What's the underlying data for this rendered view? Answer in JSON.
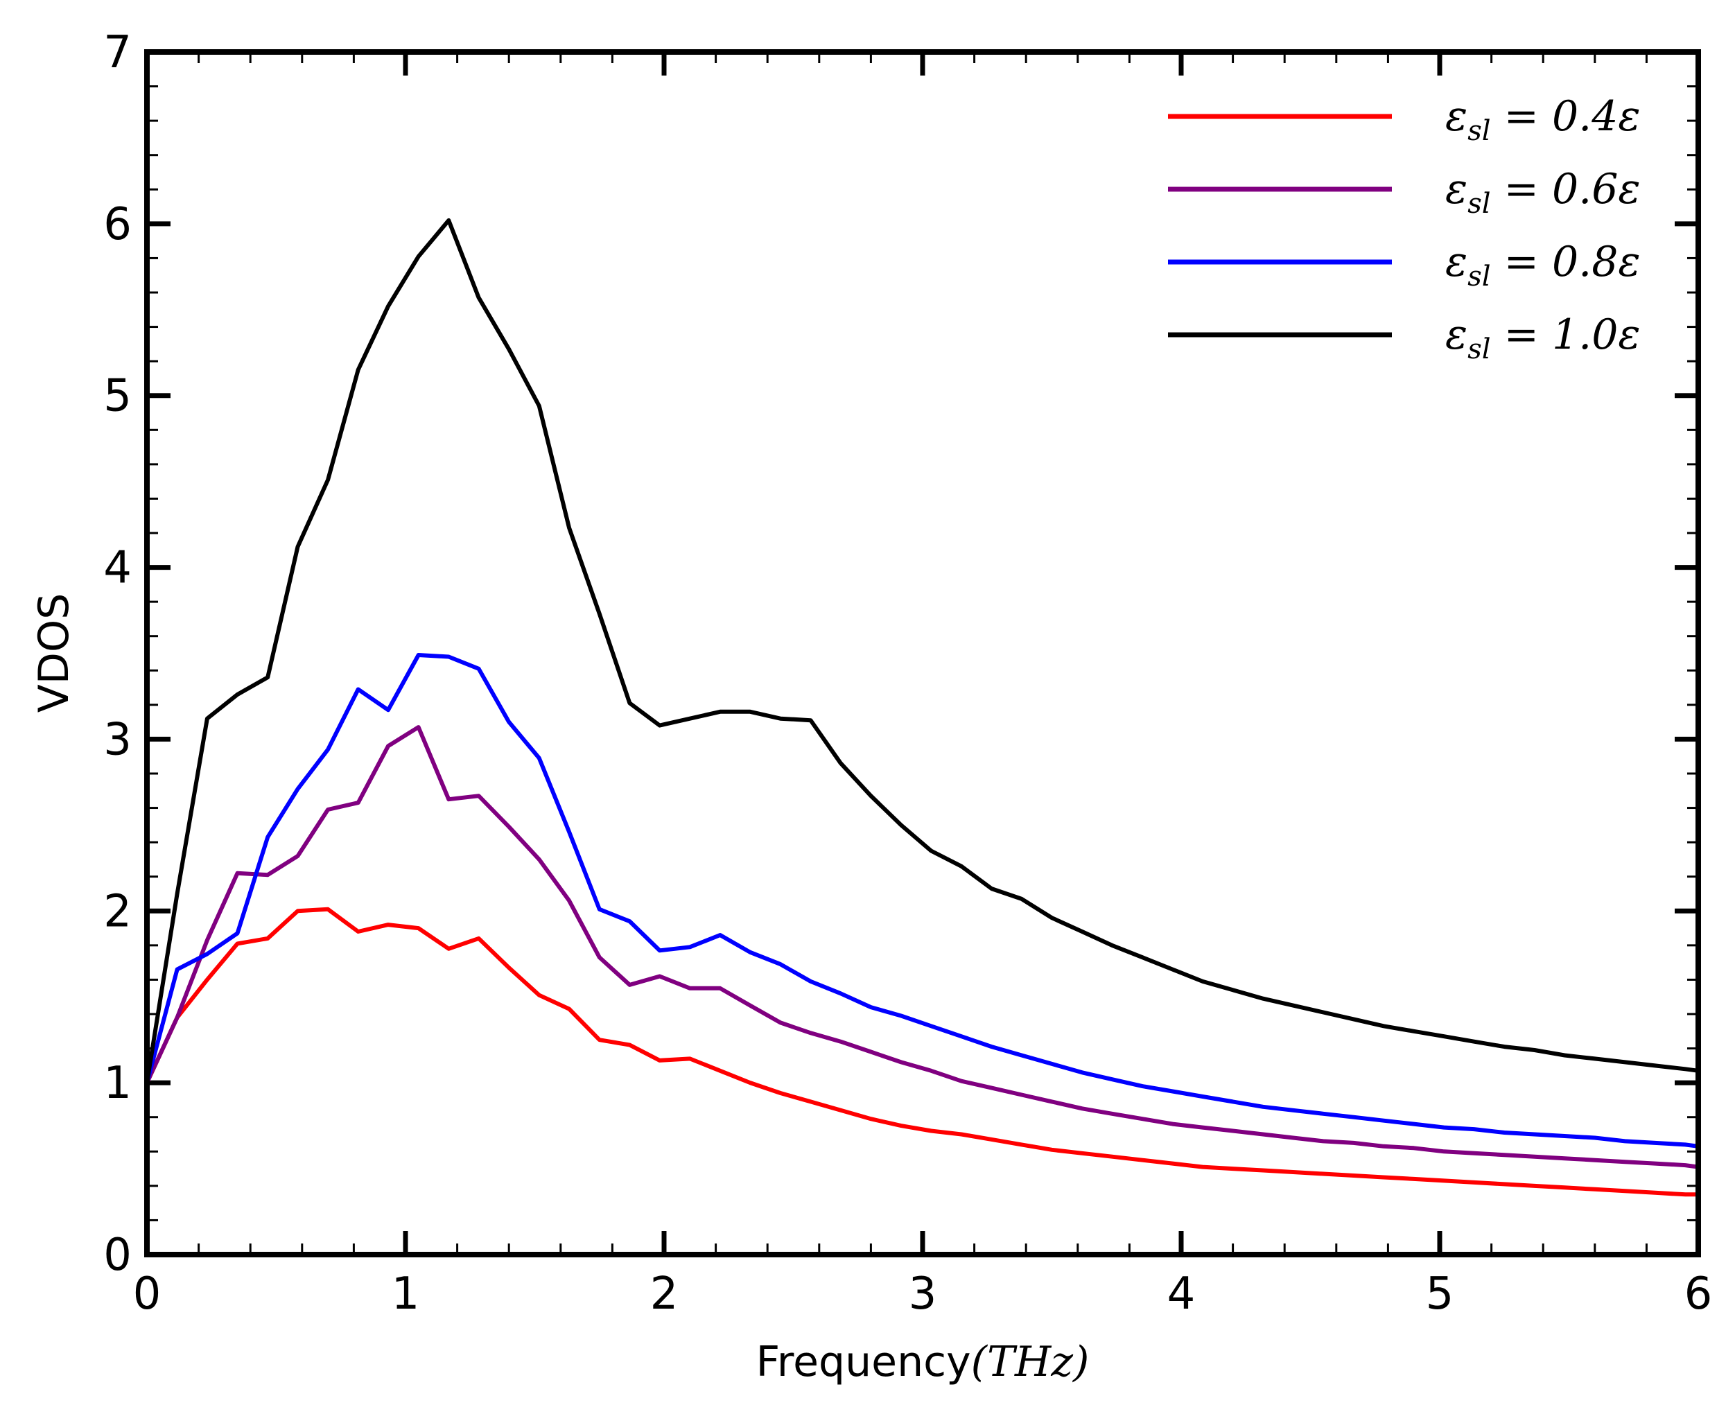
{
  "chart_data": {
    "type": "line",
    "title": "",
    "xlabel": "Frequency",
    "xlabel_math": "(THz)",
    "ylabel": "VDOS",
    "xlim": [
      0,
      6
    ],
    "ylim": [
      0,
      7
    ],
    "xticks": [
      0,
      1,
      2,
      3,
      4,
      5,
      6
    ],
    "yticks": [
      0,
      1,
      2,
      3,
      4,
      5,
      6,
      7
    ],
    "grid": false,
    "legend_position": "top-right",
    "x": [
      0,
      0.117,
      0.233,
      0.35,
      0.467,
      0.583,
      0.7,
      0.817,
      0.933,
      1.05,
      1.167,
      1.283,
      1.4,
      1.517,
      1.633,
      1.75,
      1.867,
      1.983,
      2.1,
      2.217,
      2.333,
      2.45,
      2.567,
      2.683,
      2.8,
      2.917,
      3.033,
      3.15,
      3.267,
      3.383,
      3.5,
      3.617,
      3.733,
      3.85,
      3.967,
      4.083,
      4.2,
      4.317,
      4.433,
      4.55,
      4.667,
      4.783,
      4.9,
      5.017,
      5.133,
      5.25,
      5.367,
      5.483,
      5.6,
      5.717,
      5.833,
      5.95,
      6.0
    ],
    "series": [
      {
        "name": "ε_sl = 0.4ε",
        "label_main": "ε",
        "label_sub": "sl",
        "label_rest": " = 0.4ε",
        "color": "#ff0000",
        "values": [
          1.0,
          1.38,
          1.6,
          1.81,
          1.84,
          2.0,
          2.01,
          1.88,
          1.92,
          1.9,
          1.78,
          1.84,
          1.67,
          1.51,
          1.43,
          1.25,
          1.22,
          1.13,
          1.14,
          1.07,
          1.0,
          0.94,
          0.89,
          0.84,
          0.79,
          0.75,
          0.72,
          0.7,
          0.67,
          0.64,
          0.61,
          0.59,
          0.57,
          0.55,
          0.53,
          0.51,
          0.5,
          0.49,
          0.48,
          0.47,
          0.46,
          0.45,
          0.44,
          0.43,
          0.42,
          0.41,
          0.4,
          0.39,
          0.38,
          0.37,
          0.36,
          0.35,
          0.35
        ]
      },
      {
        "name": "ε_sl = 0.6ε",
        "label_main": "ε",
        "label_sub": "sl",
        "label_rest": " = 0.6ε",
        "color": "#800080",
        "values": [
          1.0,
          1.38,
          1.83,
          2.22,
          2.21,
          2.32,
          2.59,
          2.63,
          2.96,
          3.07,
          2.65,
          2.67,
          2.49,
          2.3,
          2.06,
          1.73,
          1.57,
          1.62,
          1.55,
          1.55,
          1.45,
          1.35,
          1.29,
          1.24,
          1.18,
          1.12,
          1.07,
          1.01,
          0.97,
          0.93,
          0.89,
          0.85,
          0.82,
          0.79,
          0.76,
          0.74,
          0.72,
          0.7,
          0.68,
          0.66,
          0.65,
          0.63,
          0.62,
          0.6,
          0.59,
          0.58,
          0.57,
          0.56,
          0.55,
          0.54,
          0.53,
          0.52,
          0.51
        ]
      },
      {
        "name": "ε_sl = 0.8ε",
        "label_main": "ε",
        "label_sub": "sl",
        "label_rest": " = 0.8ε",
        "color": "#0000ff",
        "values": [
          1.0,
          1.66,
          1.75,
          1.87,
          2.43,
          2.71,
          2.94,
          3.29,
          3.17,
          3.49,
          3.48,
          3.41,
          3.1,
          2.89,
          2.46,
          2.01,
          1.94,
          1.77,
          1.79,
          1.86,
          1.76,
          1.69,
          1.59,
          1.52,
          1.44,
          1.39,
          1.33,
          1.27,
          1.21,
          1.16,
          1.11,
          1.06,
          1.02,
          0.98,
          0.95,
          0.92,
          0.89,
          0.86,
          0.84,
          0.82,
          0.8,
          0.78,
          0.76,
          0.74,
          0.73,
          0.71,
          0.7,
          0.69,
          0.68,
          0.66,
          0.65,
          0.64,
          0.63
        ]
      },
      {
        "name": "ε_sl = 1.0ε",
        "label_main": "ε",
        "label_sub": "sl",
        "label_rest": " = 1.0ε",
        "color": "#000000",
        "values": [
          1.0,
          2.1,
          3.12,
          3.26,
          3.36,
          4.12,
          4.51,
          5.15,
          5.52,
          5.81,
          6.02,
          5.57,
          5.27,
          4.94,
          4.23,
          3.73,
          3.21,
          3.08,
          3.12,
          3.16,
          3.16,
          3.12,
          3.11,
          2.86,
          2.67,
          2.5,
          2.35,
          2.26,
          2.13,
          2.07,
          1.96,
          1.88,
          1.8,
          1.73,
          1.66,
          1.59,
          1.54,
          1.49,
          1.45,
          1.41,
          1.37,
          1.33,
          1.3,
          1.27,
          1.24,
          1.21,
          1.19,
          1.16,
          1.14,
          1.12,
          1.1,
          1.08,
          1.07
        ]
      }
    ]
  }
}
